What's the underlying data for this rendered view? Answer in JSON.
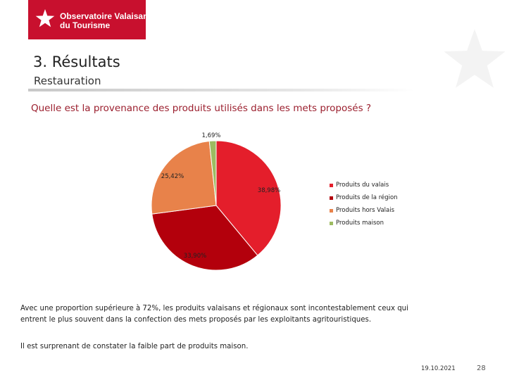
{
  "header": {
    "logo_line1": "Observatoire Valaisan",
    "logo_line2": "du Tourisme",
    "title": "3. Résultats",
    "subtitle": "Restauration"
  },
  "colors": {
    "brand_red": "#c8102e",
    "question_text": "#9b1f2e"
  },
  "question": "Quelle est la provenance des produits utilisés dans les mets proposés ?",
  "chart_data": {
    "type": "pie",
    "start_angle_deg": 0,
    "direction": "clockwise",
    "legend_position": "right",
    "slices": [
      {
        "label": "Produits du valais",
        "value": 38.98,
        "value_label": "38,98%",
        "color": "#e41e2b"
      },
      {
        "label": "Produits de la région",
        "value": 33.9,
        "value_label": "33,90%",
        "color": "#b3000c"
      },
      {
        "label": "Produits hors Valais",
        "value": 25.42,
        "value_label": "25,42%",
        "color": "#e8824a"
      },
      {
        "label": "Produits maison",
        "value": 1.69,
        "value_label": "1,69%",
        "color": "#9dbb61"
      }
    ]
  },
  "paragraph1": "Avec une proportion supérieure à 72%, les produits valaisans et régionaux sont incontestablement ceux qui entrent le plus souvent dans la confection des mets proposés par les exploitants agritouristiques.",
  "paragraph2": "Il est surprenant de constater la faible part de produits maison.",
  "footer": {
    "date": "19.10.2021",
    "page_number": "28"
  }
}
